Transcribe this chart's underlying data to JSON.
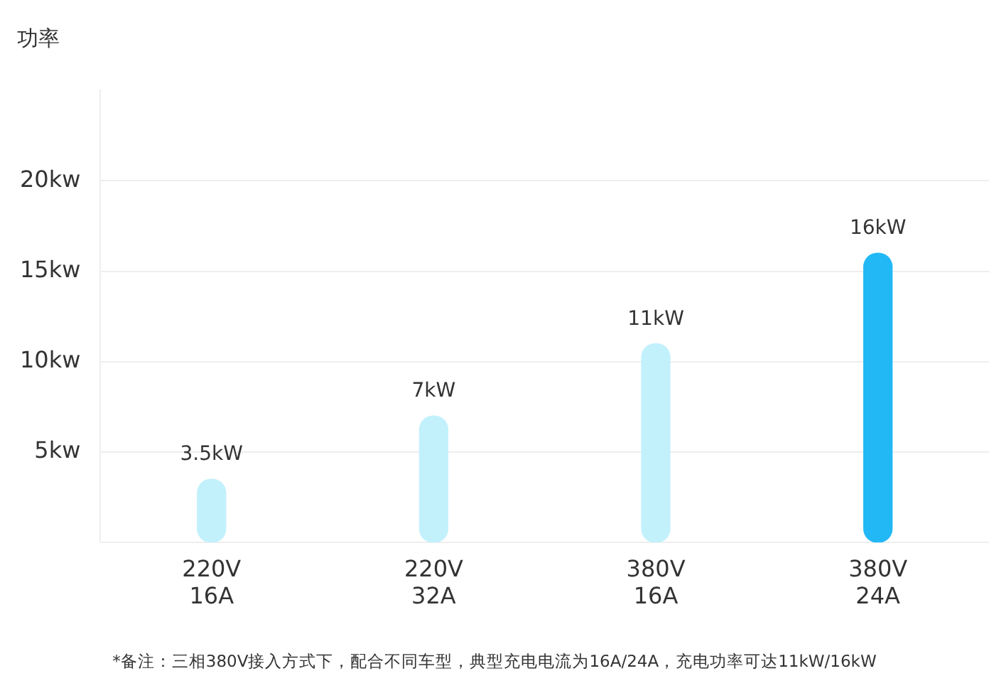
{
  "chart_data": {
    "type": "bar",
    "ylabel": "功率",
    "categories": [
      "220V\n16A",
      "220V\n32A",
      "380V\n16A",
      "380V\n24A"
    ],
    "values": [
      3.5,
      7,
      11,
      16
    ],
    "colors": [
      "#c2f1fc",
      "#c2f1fc",
      "#c2f1fc",
      "#22b8f6"
    ],
    "value_labels": [
      "3.5kW",
      "7kW",
      "11kW",
      "16kW"
    ],
    "ylim": [
      0,
      25
    ],
    "yticks": [
      {
        "value": 5,
        "label": "5kw"
      },
      {
        "value": 10,
        "label": "10kw"
      },
      {
        "value": 15,
        "label": "15kw"
      },
      {
        "value": 20,
        "label": "20kw"
      }
    ],
    "grid": "y",
    "annotations": [
      "*备注：三相380V接入方式下，配合不同车型，典型充电电流为16A/24A，充电功率可达11kW/16kW"
    ]
  }
}
